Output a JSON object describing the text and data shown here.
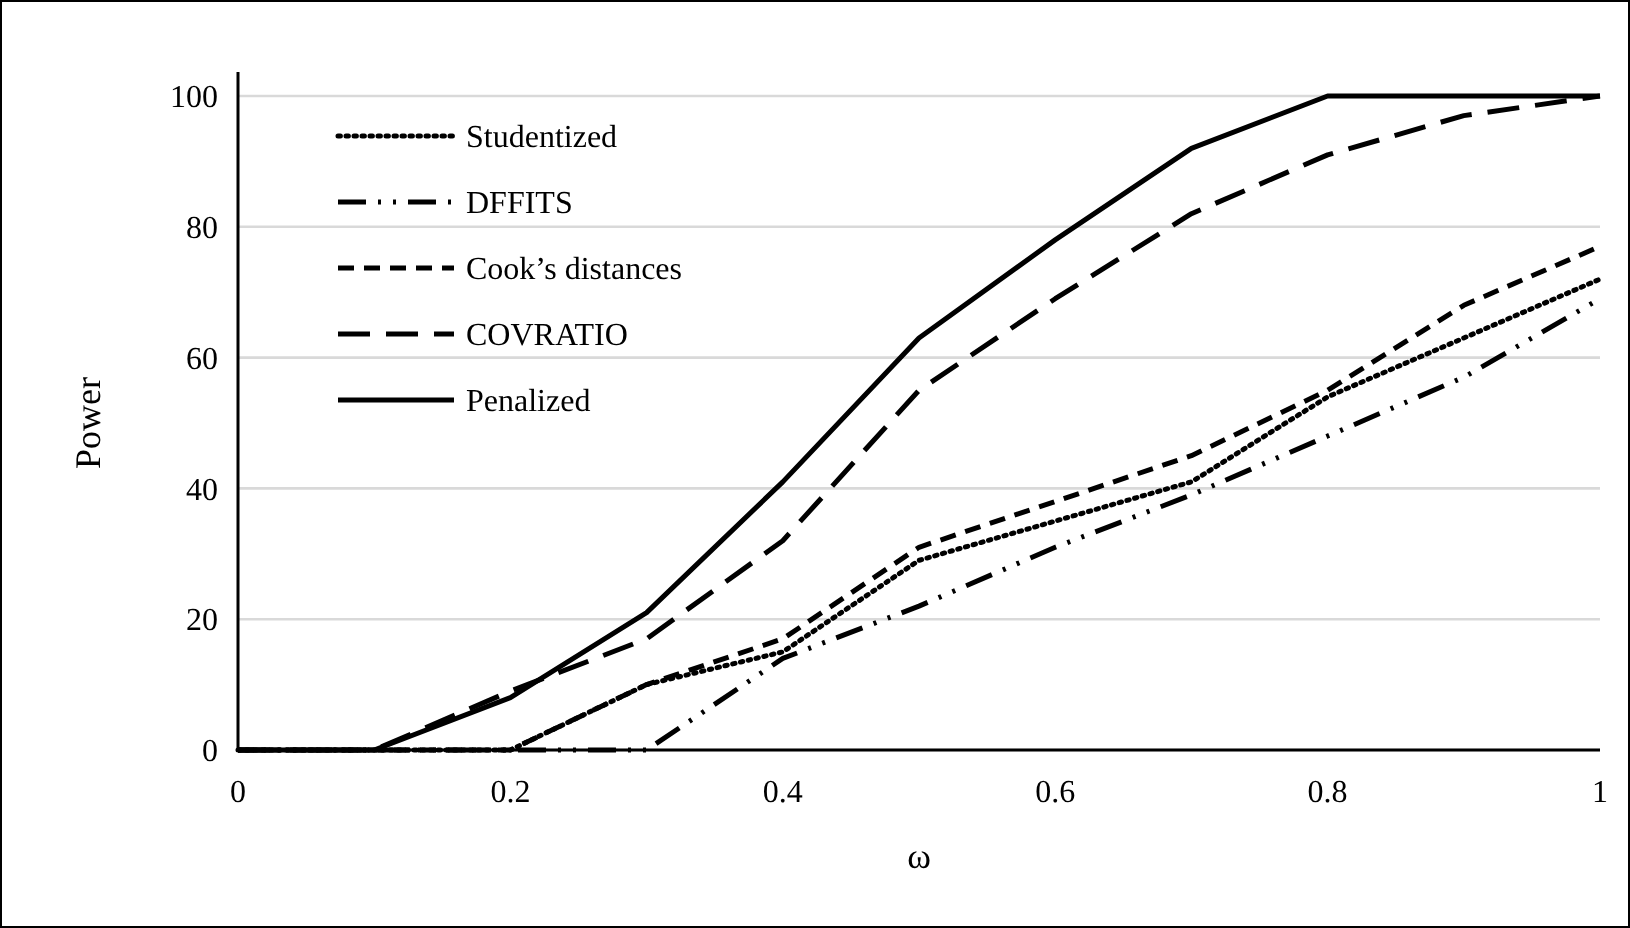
{
  "chart_data": {
    "type": "line",
    "xlabel": "ω",
    "ylabel": "Power",
    "x": [
      0,
      0.1,
      0.2,
      0.3,
      0.4,
      0.5,
      0.6,
      0.7,
      0.8,
      0.9,
      1
    ],
    "series": [
      {
        "name": "Studentized",
        "color": "#000000",
        "line_style": "dotted",
        "values": [
          0,
          0,
          0,
          10,
          15,
          29,
          35,
          41,
          54,
          63,
          72
        ]
      },
      {
        "name": "DFFITS",
        "color": "#000000",
        "line_style": "dashdot",
        "values": [
          0,
          0,
          0,
          0,
          14,
          22,
          31,
          39,
          48,
          57,
          69
        ]
      },
      {
        "name": "Cook’s distances",
        "color": "#000000",
        "line_style": "dashed",
        "values": [
          0,
          0,
          0,
          10,
          17,
          31,
          38,
          45,
          55,
          68,
          77
        ]
      },
      {
        "name": "COVRATIO",
        "color": "#000000",
        "line_style": "longdash",
        "values": [
          0,
          0,
          9,
          17,
          32,
          55,
          69,
          82,
          91,
          97,
          100
        ]
      },
      {
        "name": "Penalized",
        "color": "#000000",
        "line_style": "solid",
        "values": [
          0,
          0,
          8,
          21,
          41,
          63,
          78,
          92,
          100,
          100,
          100
        ]
      }
    ],
    "xlim": [
      0,
      1
    ],
    "xticks": [
      0,
      0.2,
      0.4,
      0.6,
      0.8,
      1
    ],
    "ylim": [
      0,
      100
    ],
    "yticks": [
      0,
      20,
      40,
      60,
      80,
      100
    ],
    "grid": "y",
    "legend": "top left",
    "marker": "none"
  }
}
